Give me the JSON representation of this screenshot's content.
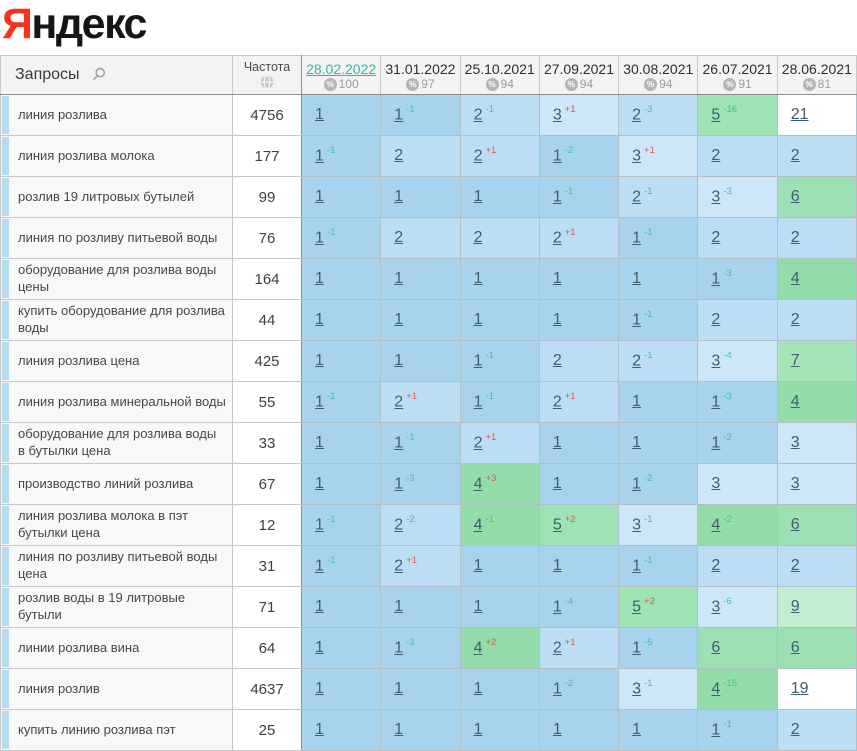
{
  "logo": {
    "first_letter": "Я",
    "rest": "ндекс"
  },
  "palette": {
    "active_date_color": "#2fb8a4",
    "delta_up_color": "#e2574c",
    "delta_down_color": "#45bdaa",
    "top3_color": "#a7d3ee",
    "top10_color": "#92ddaa"
  },
  "table": {
    "query_header": "Запросы",
    "frequency_header": "Частота",
    "search_icon": "search-icon",
    "frequency_icon": "globe-icon",
    "position_colors": {
      "1": "#a7d3ee",
      "2": "#bcdef4",
      "3": "#cde7f8",
      "4": "#92ddaa",
      "5": "#9fe2b5",
      "6": "#9ce0b3",
      "7": "#a6e4ba",
      "9": "#c2edd0",
      "19": "#ffffff",
      "21": "#ffffff"
    },
    "date_columns": [
      {
        "date": "28.02.2022",
        "coverage": "100",
        "active": true
      },
      {
        "date": "31.01.2022",
        "coverage": "97",
        "active": false
      },
      {
        "date": "25.10.2021",
        "coverage": "94",
        "active": false
      },
      {
        "date": "27.09.2021",
        "coverage": "94",
        "active": false
      },
      {
        "date": "30.08.2021",
        "coverage": "94",
        "active": false
      },
      {
        "date": "26.07.2021",
        "coverage": "91",
        "active": false
      },
      {
        "date": "28.06.2021",
        "coverage": "81",
        "active": false
      }
    ],
    "rows": [
      {
        "query": "линия розлива",
        "frequency": "4756",
        "cells": [
          {
            "pos": "1",
            "delta": ""
          },
          {
            "pos": "1",
            "delta": "-1"
          },
          {
            "pos": "2",
            "delta": "-1"
          },
          {
            "pos": "3",
            "delta": "+1"
          },
          {
            "pos": "2",
            "delta": "-3"
          },
          {
            "pos": "5",
            "delta": "-16"
          },
          {
            "pos": "21",
            "delta": ""
          }
        ]
      },
      {
        "query": "линия розлива молока",
        "frequency": "177",
        "cells": [
          {
            "pos": "1",
            "delta": "-1"
          },
          {
            "pos": "2",
            "delta": ""
          },
          {
            "pos": "2",
            "delta": "+1"
          },
          {
            "pos": "1",
            "delta": "-2"
          },
          {
            "pos": "3",
            "delta": "+1"
          },
          {
            "pos": "2",
            "delta": ""
          },
          {
            "pos": "2",
            "delta": ""
          }
        ]
      },
      {
        "query": "розлив 19 литровых бутылей",
        "frequency": "99",
        "cells": [
          {
            "pos": "1",
            "delta": ""
          },
          {
            "pos": "1",
            "delta": ""
          },
          {
            "pos": "1",
            "delta": ""
          },
          {
            "pos": "1",
            "delta": "-1"
          },
          {
            "pos": "2",
            "delta": "-1"
          },
          {
            "pos": "3",
            "delta": "-3"
          },
          {
            "pos": "6",
            "delta": ""
          }
        ]
      },
      {
        "query": "линия по розливу питьевой воды",
        "frequency": "76",
        "cells": [
          {
            "pos": "1",
            "delta": "-1"
          },
          {
            "pos": "2",
            "delta": ""
          },
          {
            "pos": "2",
            "delta": ""
          },
          {
            "pos": "2",
            "delta": "+1"
          },
          {
            "pos": "1",
            "delta": "-1"
          },
          {
            "pos": "2",
            "delta": ""
          },
          {
            "pos": "2",
            "delta": ""
          }
        ]
      },
      {
        "query": "оборудование для розлива воды цены",
        "frequency": "164",
        "cells": [
          {
            "pos": "1",
            "delta": ""
          },
          {
            "pos": "1",
            "delta": ""
          },
          {
            "pos": "1",
            "delta": ""
          },
          {
            "pos": "1",
            "delta": ""
          },
          {
            "pos": "1",
            "delta": ""
          },
          {
            "pos": "1",
            "delta": "-3"
          },
          {
            "pos": "4",
            "delta": ""
          }
        ]
      },
      {
        "query": "купить оборудование для розлива воды",
        "frequency": "44",
        "cells": [
          {
            "pos": "1",
            "delta": ""
          },
          {
            "pos": "1",
            "delta": ""
          },
          {
            "pos": "1",
            "delta": ""
          },
          {
            "pos": "1",
            "delta": ""
          },
          {
            "pos": "1",
            "delta": "-1"
          },
          {
            "pos": "2",
            "delta": ""
          },
          {
            "pos": "2",
            "delta": ""
          }
        ]
      },
      {
        "query": "линия розлива цена",
        "frequency": "425",
        "cells": [
          {
            "pos": "1",
            "delta": ""
          },
          {
            "pos": "1",
            "delta": ""
          },
          {
            "pos": "1",
            "delta": "-1"
          },
          {
            "pos": "2",
            "delta": ""
          },
          {
            "pos": "2",
            "delta": "-1"
          },
          {
            "pos": "3",
            "delta": "-4"
          },
          {
            "pos": "7",
            "delta": ""
          }
        ]
      },
      {
        "query": "линия розлива минеральной воды",
        "frequency": "55",
        "cells": [
          {
            "pos": "1",
            "delta": "-1"
          },
          {
            "pos": "2",
            "delta": "+1"
          },
          {
            "pos": "1",
            "delta": "-1"
          },
          {
            "pos": "2",
            "delta": "+1"
          },
          {
            "pos": "1",
            "delta": ""
          },
          {
            "pos": "1",
            "delta": "-3"
          },
          {
            "pos": "4",
            "delta": ""
          }
        ]
      },
      {
        "query": "оборудование для розлива воды в бутылки цена",
        "frequency": "33",
        "cells": [
          {
            "pos": "1",
            "delta": ""
          },
          {
            "pos": "1",
            "delta": "-1"
          },
          {
            "pos": "2",
            "delta": "+1"
          },
          {
            "pos": "1",
            "delta": ""
          },
          {
            "pos": "1",
            "delta": ""
          },
          {
            "pos": "1",
            "delta": "-2"
          },
          {
            "pos": "3",
            "delta": ""
          }
        ]
      },
      {
        "query": "производство линий розлива",
        "frequency": "67",
        "cells": [
          {
            "pos": "1",
            "delta": ""
          },
          {
            "pos": "1",
            "delta": "-3"
          },
          {
            "pos": "4",
            "delta": "+3"
          },
          {
            "pos": "1",
            "delta": ""
          },
          {
            "pos": "1",
            "delta": "-2"
          },
          {
            "pos": "3",
            "delta": ""
          },
          {
            "pos": "3",
            "delta": ""
          }
        ]
      },
      {
        "query": "линия розлива молока в пэт бутылки цена",
        "frequency": "12",
        "cells": [
          {
            "pos": "1",
            "delta": "-1"
          },
          {
            "pos": "2",
            "delta": "-2"
          },
          {
            "pos": "4",
            "delta": "-1"
          },
          {
            "pos": "5",
            "delta": "+2"
          },
          {
            "pos": "3",
            "delta": "-1"
          },
          {
            "pos": "4",
            "delta": "-2"
          },
          {
            "pos": "6",
            "delta": ""
          }
        ]
      },
      {
        "query": "линия по розливу питьевой воды цена",
        "frequency": "31",
        "cells": [
          {
            "pos": "1",
            "delta": "-1"
          },
          {
            "pos": "2",
            "delta": "+1"
          },
          {
            "pos": "1",
            "delta": ""
          },
          {
            "pos": "1",
            "delta": ""
          },
          {
            "pos": "1",
            "delta": "-1"
          },
          {
            "pos": "2",
            "delta": ""
          },
          {
            "pos": "2",
            "delta": ""
          }
        ]
      },
      {
        "query": "розлив воды в 19 литровые бутыли",
        "frequency": "71",
        "cells": [
          {
            "pos": "1",
            "delta": ""
          },
          {
            "pos": "1",
            "delta": ""
          },
          {
            "pos": "1",
            "delta": ""
          },
          {
            "pos": "1",
            "delta": "-4"
          },
          {
            "pos": "5",
            "delta": "+2"
          },
          {
            "pos": "3",
            "delta": "-6"
          },
          {
            "pos": "9",
            "delta": ""
          }
        ]
      },
      {
        "query": "линии розлива вина",
        "frequency": "64",
        "cells": [
          {
            "pos": "1",
            "delta": ""
          },
          {
            "pos": "1",
            "delta": "-3"
          },
          {
            "pos": "4",
            "delta": "+2"
          },
          {
            "pos": "2",
            "delta": "+1"
          },
          {
            "pos": "1",
            "delta": "-5"
          },
          {
            "pos": "6",
            "delta": ""
          },
          {
            "pos": "6",
            "delta": ""
          }
        ]
      },
      {
        "query": "линия розлив",
        "frequency": "4637",
        "cells": [
          {
            "pos": "1",
            "delta": ""
          },
          {
            "pos": "1",
            "delta": ""
          },
          {
            "pos": "1",
            "delta": ""
          },
          {
            "pos": "1",
            "delta": "-2"
          },
          {
            "pos": "3",
            "delta": "-1"
          },
          {
            "pos": "4",
            "delta": "-15"
          },
          {
            "pos": "19",
            "delta": ""
          }
        ]
      },
      {
        "query": "купить линию розлива пэт",
        "frequency": "25",
        "cells": [
          {
            "pos": "1",
            "delta": ""
          },
          {
            "pos": "1",
            "delta": ""
          },
          {
            "pos": "1",
            "delta": ""
          },
          {
            "pos": "1",
            "delta": ""
          },
          {
            "pos": "1",
            "delta": ""
          },
          {
            "pos": "1",
            "delta": "-1"
          },
          {
            "pos": "2",
            "delta": ""
          }
        ]
      }
    ]
  }
}
